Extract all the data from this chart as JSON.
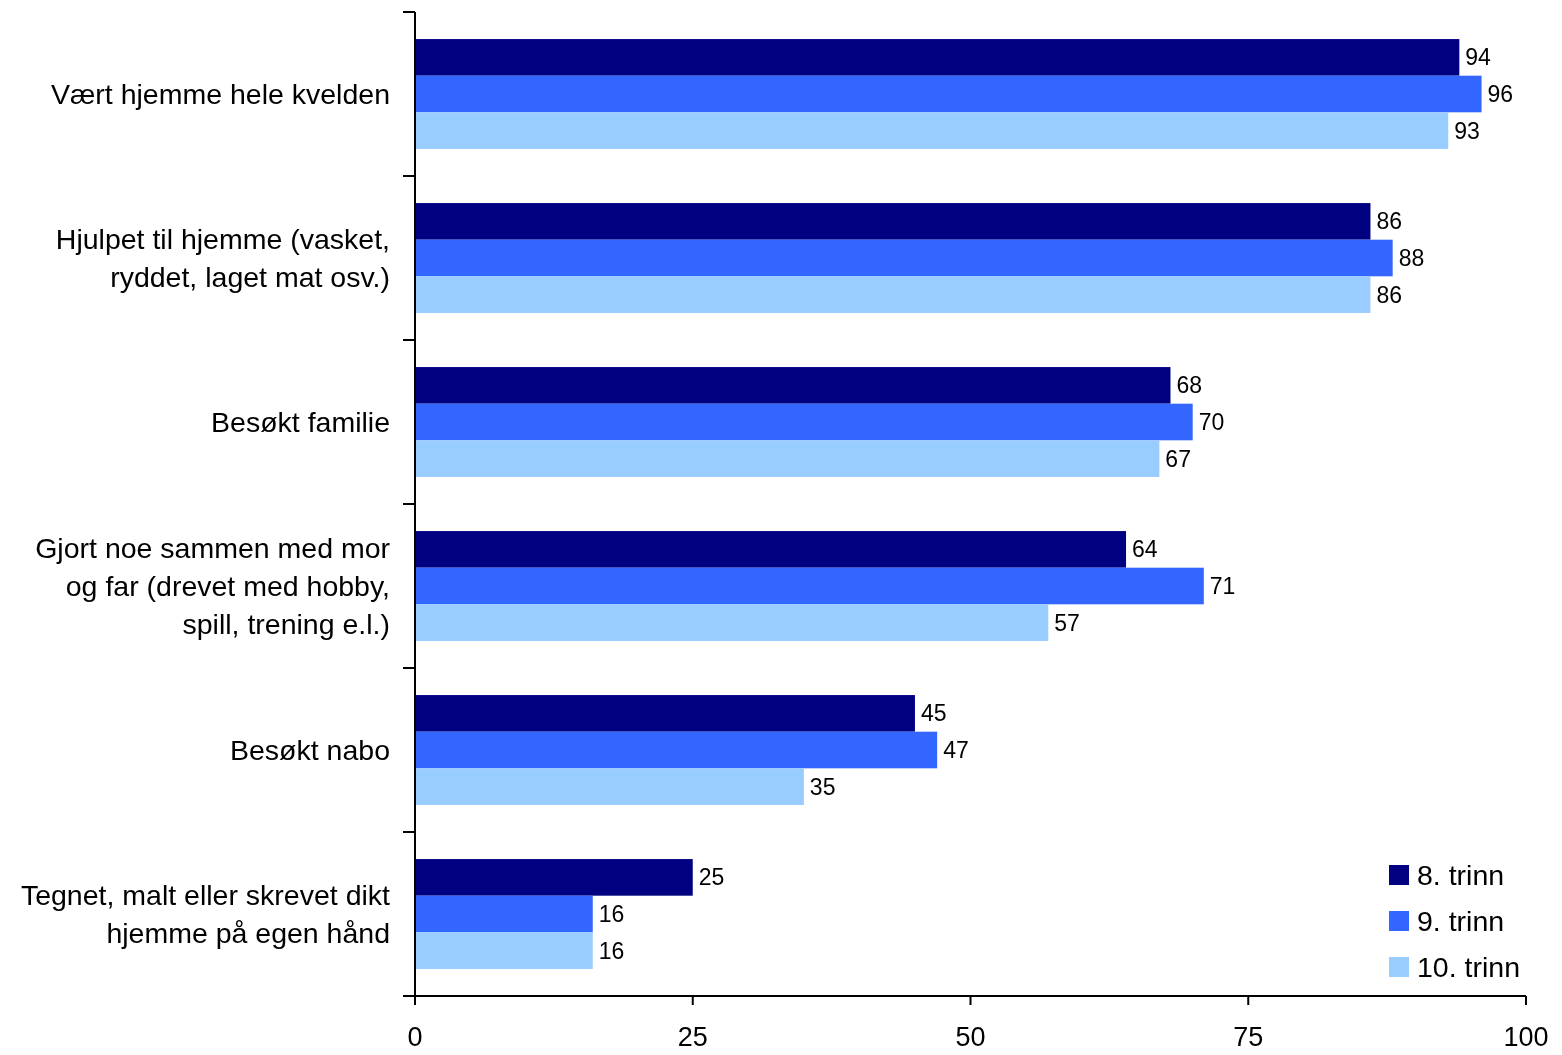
{
  "chart_data": {
    "type": "bar",
    "orientation": "horizontal",
    "categories": [
      "Vært hjemme hele kvelden",
      "Hjulpet til hjemme (vasket, ryddet, laget mat osv.)",
      "Besøkt familie",
      "Gjort noe sammen med mor og far (drevet med hobby, spill, trening e.l.)",
      "Besøkt nabo",
      "Tegnet, malt eller skrevet dikt hjemme på egen hånd"
    ],
    "series": [
      {
        "name": "8. trinn",
        "color": "#000080",
        "values": [
          94,
          86,
          68,
          64,
          45,
          25
        ]
      },
      {
        "name": "9. trinn",
        "color": "#3366ff",
        "values": [
          96,
          88,
          70,
          71,
          47,
          16
        ]
      },
      {
        "name": "10. trinn",
        "color": "#99ccff",
        "values": [
          93,
          86,
          67,
          57,
          35,
          16
        ]
      }
    ],
    "xlim": [
      0,
      100
    ],
    "xticks": [
      0,
      25,
      50,
      75,
      100
    ],
    "data_labels": true,
    "legend": "bottom right"
  }
}
